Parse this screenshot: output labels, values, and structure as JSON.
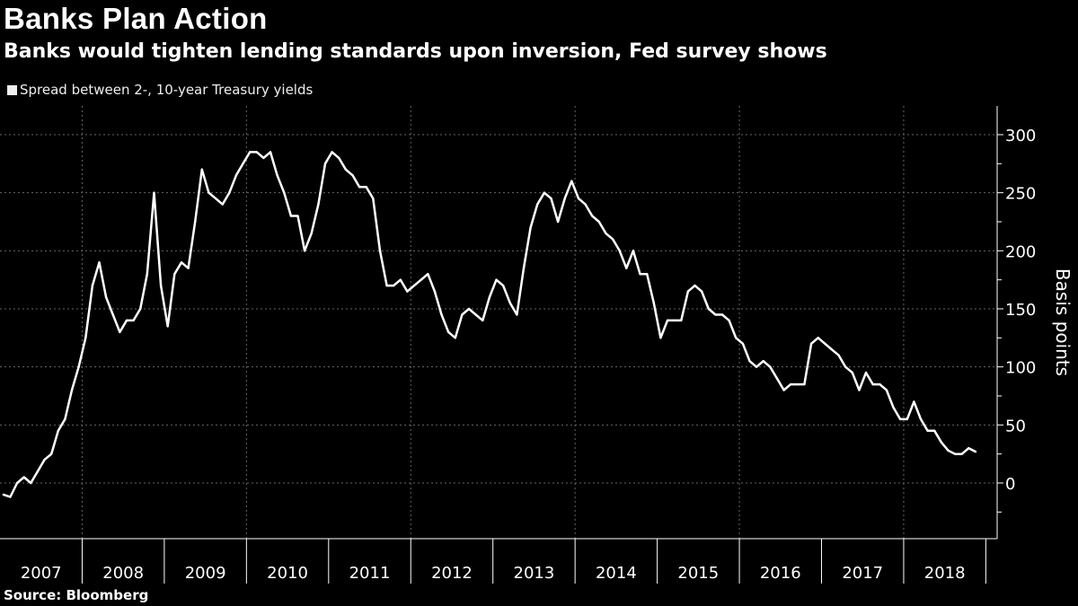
{
  "header": {
    "title": "Banks Plan Action",
    "subtitle": "Banks would tighten lending standards upon inversion, Fed survey shows"
  },
  "footer": {
    "source": "Source: Bloomberg"
  },
  "chart_data": {
    "type": "line",
    "title": "Banks Plan Action",
    "subtitle": "Banks would tighten lending standards upon inversion, Fed survey shows",
    "ylabel": "Basis points",
    "xlabel": "",
    "ylim": [
      -50,
      320
    ],
    "yticks": [
      0,
      50,
      100,
      150,
      200,
      250,
      300
    ],
    "xticks": [
      "2007",
      "2008",
      "2009",
      "2010",
      "2011",
      "2012",
      "2013",
      "2014",
      "2015",
      "2016",
      "2017",
      "2018"
    ],
    "grid": true,
    "legend": "top-left",
    "line_color": "#ffffff",
    "background": "#000000",
    "series": [
      {
        "name": "Spread between 2-, 10-year Treasury yields",
        "start": "2007-01",
        "frequency": "monthly",
        "values": [
          -10,
          -12,
          0,
          5,
          0,
          10,
          20,
          25,
          45,
          55,
          80,
          100,
          125,
          170,
          190,
          160,
          145,
          130,
          140,
          140,
          150,
          180,
          250,
          170,
          135,
          180,
          190,
          185,
          225,
          270,
          250,
          245,
          240,
          250,
          265,
          275,
          285,
          285,
          280,
          285,
          265,
          250,
          230,
          230,
          200,
          215,
          240,
          275,
          285,
          280,
          270,
          265,
          255,
          255,
          245,
          200,
          170,
          170,
          175,
          165,
          170,
          175,
          180,
          165,
          145,
          130,
          125,
          145,
          150,
          145,
          140,
          160,
          175,
          170,
          155,
          145,
          185,
          220,
          240,
          250,
          245,
          225,
          245,
          260,
          245,
          240,
          230,
          225,
          215,
          210,
          200,
          185,
          200,
          180,
          180,
          155,
          125,
          140,
          140,
          140,
          165,
          170,
          165,
          150,
          145,
          145,
          140,
          125,
          120,
          105,
          100,
          105,
          100,
          90,
          80,
          85,
          85,
          85,
          120,
          125,
          120,
          115,
          110,
          100,
          95,
          80,
          95,
          85,
          85,
          80,
          65,
          55,
          55,
          70,
          55,
          45,
          45,
          35,
          28,
          25,
          25,
          30,
          27
        ]
      }
    ]
  }
}
